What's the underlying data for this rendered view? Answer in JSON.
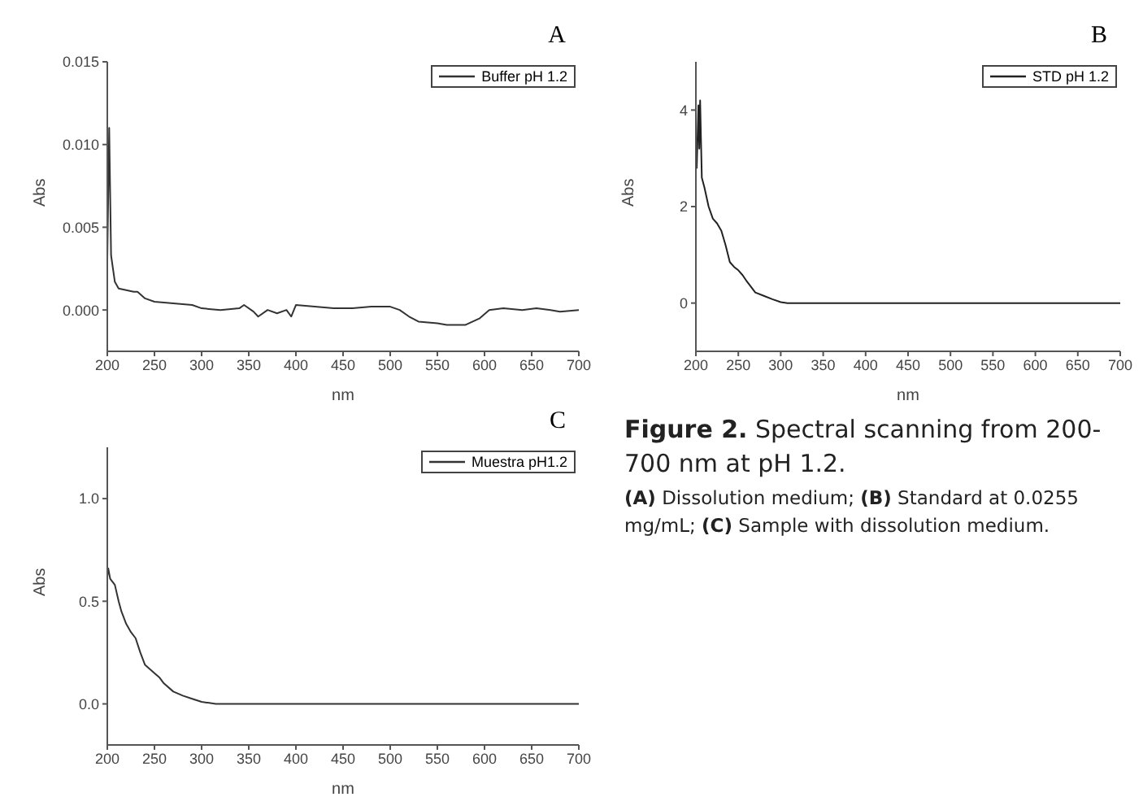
{
  "chart_data": [
    {
      "type": "line",
      "title": "A",
      "xlabel": "nm",
      "ylabel": "Abs",
      "xlim": [
        200,
        700
      ],
      "xticks": [
        200,
        250,
        300,
        350,
        400,
        450,
        500,
        550,
        600,
        650,
        700
      ],
      "ylim": [
        -0.0025,
        0.015
      ],
      "yticks": [
        {
          "value": 0,
          "label": "0.000"
        },
        {
          "value": 0.005,
          "label": "0.005"
        },
        {
          "value": 0.01,
          "label": "0.010"
        },
        {
          "value": 0.015,
          "label": "0.015"
        }
      ],
      "grid": false,
      "legend": "top right",
      "series": [
        {
          "name": "Buffer pH 1.2",
          "color": "#333333",
          "x": [
            200,
            202,
            204,
            206,
            208,
            212,
            220,
            228,
            232,
            240,
            250,
            270,
            290,
            300,
            320,
            340,
            345,
            355,
            360,
            370,
            380,
            390,
            395,
            400,
            420,
            440,
            460,
            480,
            500,
            510,
            520,
            530,
            550,
            560,
            580,
            595,
            605,
            620,
            640,
            655,
            670,
            680,
            700
          ],
          "values": [
            0.003,
            0.011,
            0.0033,
            0.0025,
            0.0017,
            0.0013,
            0.0012,
            0.0011,
            0.0011,
            0.0007,
            0.0005,
            0.0004,
            0.0003,
            0.0001,
            0.0,
            0.0001,
            0.0003,
            -0.0001,
            -0.0004,
            0.0,
            -0.0002,
            0.0,
            -0.0004,
            0.0003,
            0.0002,
            0.0001,
            0.0001,
            0.0002,
            0.0002,
            0.0,
            -0.0004,
            -0.0007,
            -0.0008,
            -0.0009,
            -0.0009,
            -0.0005,
            0.0,
            0.0001,
            0.0,
            0.0001,
            0.0,
            -0.0001,
            0.0
          ]
        }
      ]
    },
    {
      "type": "line",
      "title": "B",
      "xlabel": "nm",
      "ylabel": "Abs",
      "xlim": [
        200,
        700
      ],
      "xticks": [
        200,
        250,
        300,
        350,
        400,
        450,
        500,
        550,
        600,
        650,
        700
      ],
      "ylim": [
        -1,
        5
      ],
      "yticks": [
        0,
        2,
        4
      ],
      "grid": false,
      "legend": "top right",
      "series": [
        {
          "name": "STD pH 1.2",
          "color": "#222222",
          "x": [
            200,
            201,
            203,
            204,
            205,
            207,
            210,
            215,
            220,
            225,
            230,
            235,
            240,
            245,
            250,
            255,
            260,
            270,
            280,
            290,
            300,
            308,
            700
          ],
          "values": [
            3.0,
            2.8,
            4.1,
            3.2,
            4.2,
            2.6,
            2.4,
            2.0,
            1.75,
            1.65,
            1.5,
            1.2,
            0.85,
            0.75,
            0.68,
            0.58,
            0.45,
            0.22,
            0.15,
            0.08,
            0.02,
            0.0,
            0.0
          ]
        }
      ]
    },
    {
      "type": "line",
      "title": "C",
      "xlabel": "nm",
      "ylabel": "Abs",
      "xlim": [
        200,
        700
      ],
      "xticks": [
        200,
        250,
        300,
        350,
        400,
        450,
        500,
        550,
        600,
        650,
        700
      ],
      "ylim": [
        -0.2,
        1.25
      ],
      "yticks": [
        {
          "value": 0,
          "label": "0.0"
        },
        {
          "value": 0.5,
          "label": "0.5"
        },
        {
          "value": 1,
          "label": "1.0"
        }
      ],
      "grid": false,
      "legend": "top right",
      "series": [
        {
          "name": "Muestra pH1.2",
          "color": "#333333",
          "x": [
            200,
            201,
            203,
            208,
            212,
            215,
            220,
            225,
            230,
            235,
            240,
            250,
            255,
            260,
            270,
            280,
            290,
            300,
            315,
            700
          ],
          "values": [
            0.62,
            0.66,
            0.61,
            0.58,
            0.5,
            0.45,
            0.39,
            0.35,
            0.32,
            0.25,
            0.19,
            0.15,
            0.13,
            0.1,
            0.06,
            0.04,
            0.025,
            0.01,
            0.0,
            0.0
          ]
        }
      ]
    },
    {
      "type": "other",
      "title": "Figure 2. Spectral scanning from 200-700 nm at pH 1.2.",
      "annotations": [
        "(A) Dissolution medium; (B) Standard at 0.0255 mg/mL; (C) Sample with dissolution medium."
      ]
    }
  ]
}
